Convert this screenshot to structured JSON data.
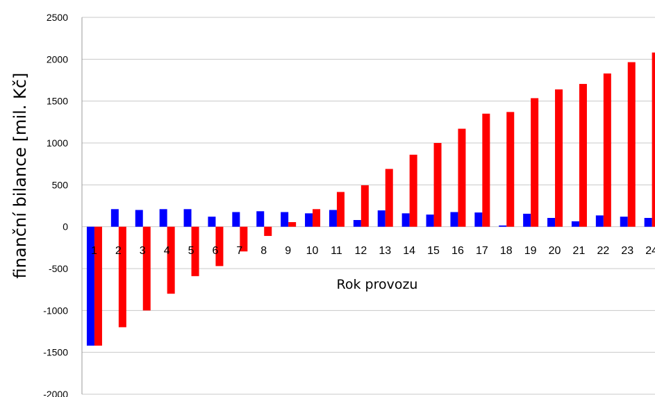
{
  "chart_data": {
    "type": "bar",
    "title": "",
    "xlabel": "Rok provozu",
    "ylabel": "finanční bilance [mil. Kč]",
    "ylim": [
      -2000,
      2500
    ],
    "yticks": [
      2500,
      2000,
      1500,
      1000,
      500,
      0,
      -500,
      -1000,
      -1500,
      -2000
    ],
    "grid": true,
    "legend": "none",
    "categories": [
      "1",
      "2",
      "3",
      "4",
      "5",
      "6",
      "7",
      "8",
      "9",
      "10",
      "11",
      "12",
      "13",
      "14",
      "15",
      "16",
      "17",
      "18",
      "19",
      "20",
      "21",
      "22",
      "23",
      "24"
    ],
    "series": [
      {
        "color": "#0000ff",
        "values": [
          -1420,
          210,
          200,
          210,
          210,
          120,
          175,
          185,
          175,
          160,
          200,
          80,
          195,
          160,
          145,
          175,
          170,
          15,
          155,
          105,
          65,
          135,
          120,
          105
        ]
      },
      {
        "color": "#ff0000",
        "values": [
          -1420,
          -1200,
          -1000,
          -800,
          -590,
          -470,
          -295,
          -110,
          55,
          210,
          415,
          495,
          690,
          860,
          1000,
          1170,
          1350,
          1370,
          1535,
          1640,
          1705,
          1830,
          1965,
          2080
        ]
      }
    ]
  }
}
